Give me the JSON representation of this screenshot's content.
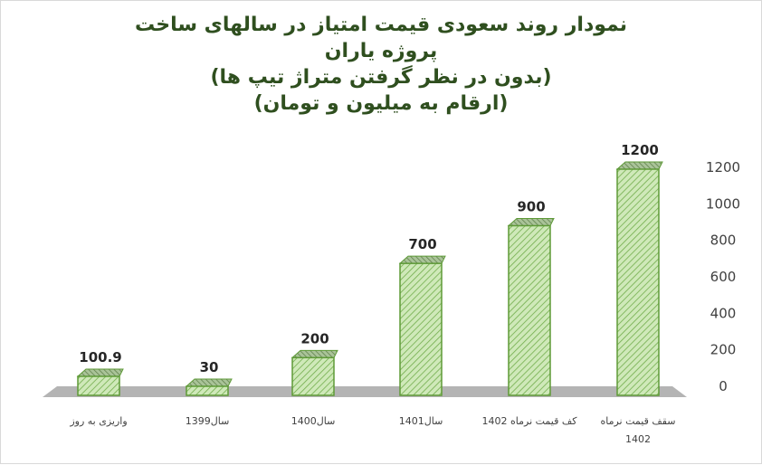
{
  "chart_data": {
    "type": "bar",
    "title_lines": [
      "نمودار روند سعودی قیمت امتیاز در سالهای ساخت",
      "پروژه یاران",
      "(بدون در نظر گرفتن متراژ تیپ ها)",
      "(ارقام به میلیون و تومان)"
    ],
    "categories": [
      [
        "واریزی به روز"
      ],
      [
        "سال1399"
      ],
      [
        "سال1400"
      ],
      [
        "سال1401"
      ],
      [
        "کف قیمت نرماه 1402"
      ],
      [
        "سقف قیمت نرماه",
        "1402"
      ]
    ],
    "values": [
      100.9,
      30,
      200,
      700,
      900,
      1200
    ],
    "data_labels": [
      "100.9",
      "30",
      "200",
      "700",
      "900",
      "1200"
    ],
    "yticks": [
      "0",
      "200",
      "400",
      "600",
      "800",
      "1000",
      "1200"
    ],
    "ylim": [
      0,
      1200
    ],
    "axis_position": "right",
    "legend": "none",
    "colors": {
      "bar_face": "#c8e6b0",
      "bar_hatch": "#6fa84a",
      "bar_edge": "#5e9a37",
      "bar_top": "#8aa876",
      "bar_side": "#3c4a33",
      "floor": "#b4b4b4",
      "title": "#2f4f1f"
    }
  }
}
